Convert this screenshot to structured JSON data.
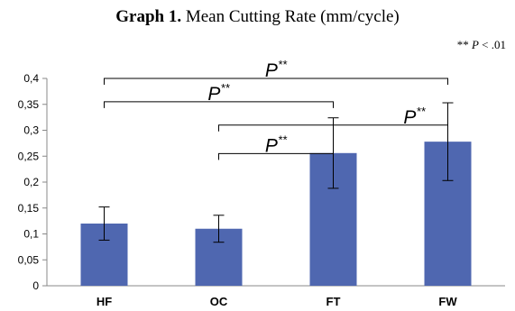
{
  "chart_data": {
    "type": "bar",
    "title_bold": "Graph 1.",
    "title_rest": "Mean Cutting Rate (mm/cycle)",
    "note_stars": "** ",
    "note_p": "P",
    "note_rest": " < .01",
    "categories": [
      "HF",
      "OC",
      "FT",
      "FW"
    ],
    "values": [
      0.12,
      0.11,
      0.256,
      0.278
    ],
    "errors": [
      0.032,
      0.026,
      0.068,
      0.075
    ],
    "ylim": [
      0,
      0.4
    ],
    "yticks": [
      0,
      0.05,
      0.1,
      0.15,
      0.2,
      0.25,
      0.3,
      0.35,
      0.4
    ],
    "ytick_labels": [
      "0",
      "0,05",
      "0,1",
      "0,15",
      "0,2",
      "0,25",
      "0,3",
      "0,35",
      "0,4"
    ],
    "bar_color": "#4f67b0",
    "gridlines": false,
    "significance": [
      {
        "from": "HF",
        "to": "FW",
        "level": 0.4,
        "label": "P",
        "stars": "**"
      },
      {
        "from": "HF",
        "to": "FT",
        "level": 0.355,
        "label": "P",
        "stars": "**"
      },
      {
        "from": "OC",
        "to": "FW",
        "level": 0.31,
        "label": "P",
        "stars": "**"
      },
      {
        "from": "OC",
        "to": "FT",
        "level": 0.255,
        "label": "P",
        "stars": "**"
      }
    ]
  }
}
